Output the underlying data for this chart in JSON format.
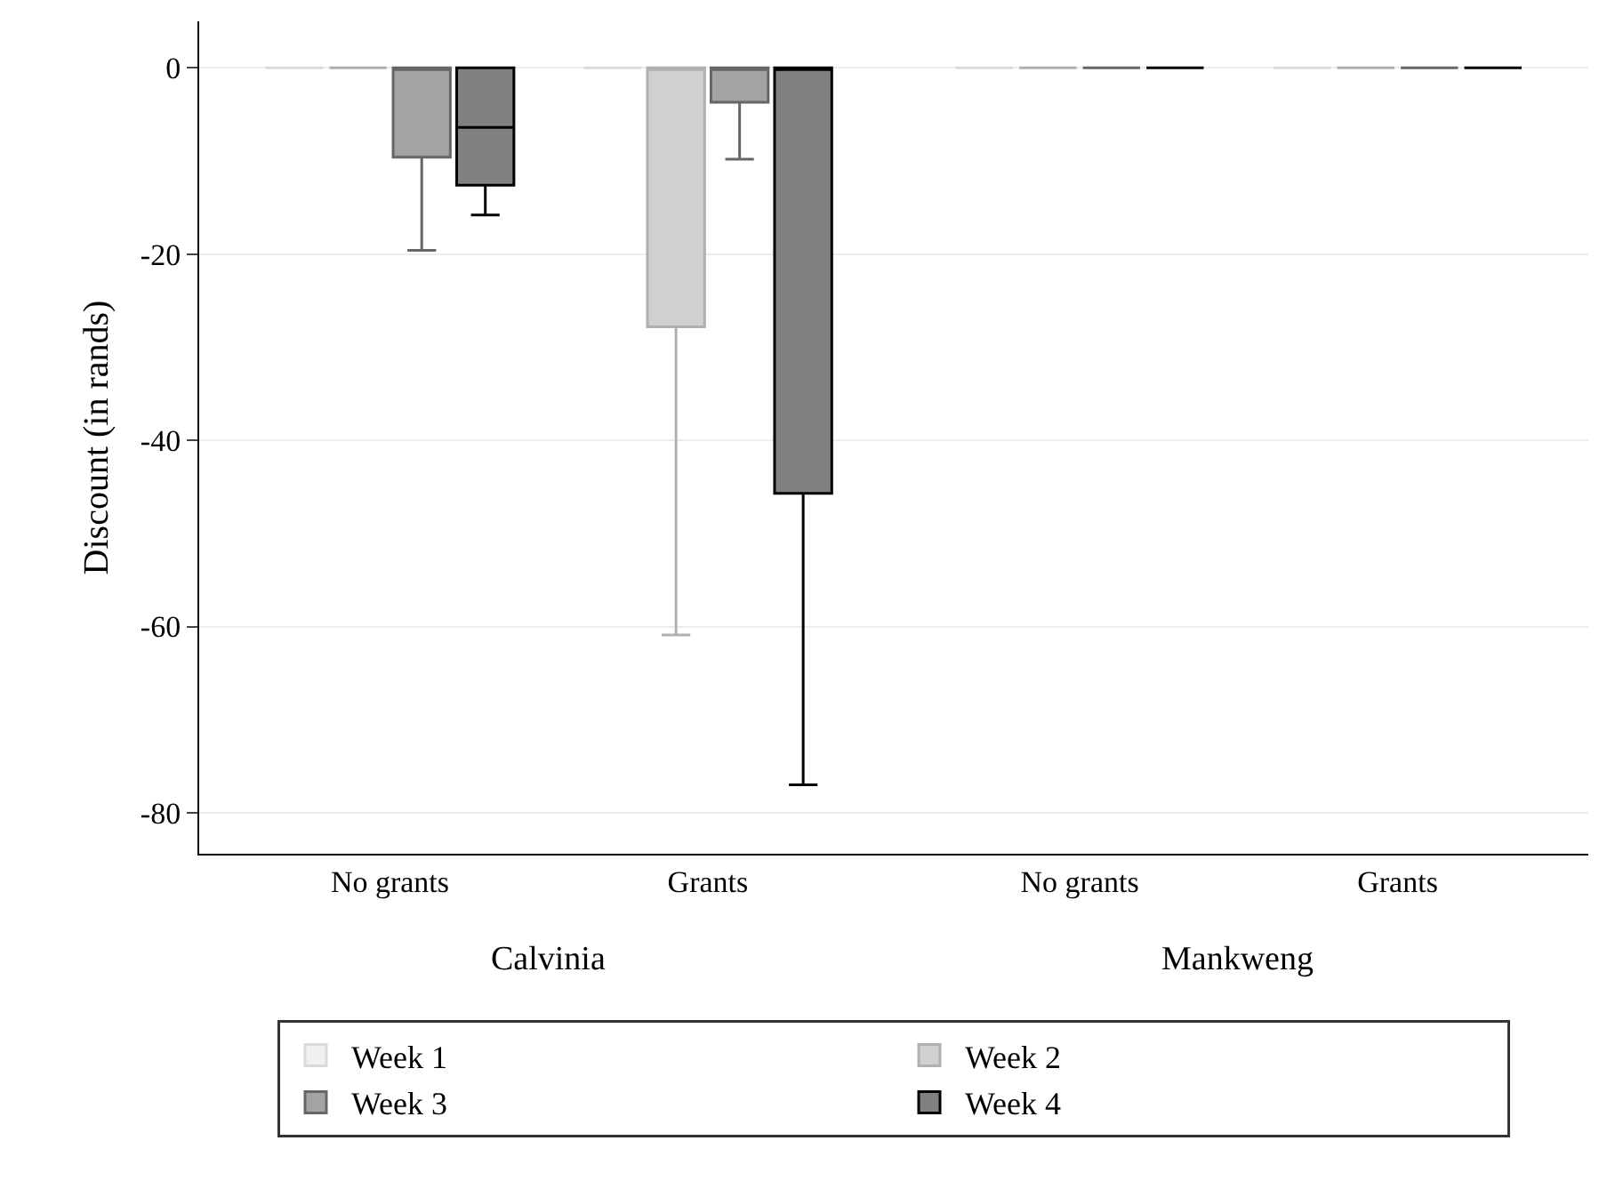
{
  "chart_data": {
    "type": "box",
    "ylabel": "Discount (in rands)",
    "categories": [
      "No grants",
      "Grants",
      "No grants",
      "Grants"
    ],
    "annotations": [
      "Calvinia",
      "Mankweng"
    ],
    "series": [
      {
        "name": "Week 1",
        "color": "#d9d9d9",
        "boxes": [
          {
            "low": 0,
            "q1": 0,
            "median": 0,
            "q3": 0,
            "high": 0
          },
          {
            "low": 0,
            "q1": 0,
            "median": 0,
            "q3": 0,
            "high": 0
          },
          {
            "low": 0,
            "q1": 0,
            "median": 0,
            "q3": 0,
            "high": 0
          },
          {
            "low": 0,
            "q1": 0,
            "median": 0,
            "q3": 0,
            "high": 0
          }
        ]
      },
      {
        "name": "Week 2",
        "color": "#b0b0b0",
        "boxes": [
          {
            "low": 0,
            "q1": 0,
            "median": 0,
            "q3": 0,
            "high": 0
          },
          {
            "low": -60.9,
            "q1": -27.8,
            "median": 0,
            "q3": 0,
            "high": 0
          },
          {
            "low": 0,
            "q1": 0,
            "median": 0,
            "q3": 0,
            "high": 0
          },
          {
            "low": 0,
            "q1": 0,
            "median": 0,
            "q3": 0,
            "high": 0
          }
        ]
      },
      {
        "name": "Week 3",
        "color": "#666666",
        "boxes": [
          {
            "low": -19.6,
            "q1": -9.6,
            "median": 0,
            "q3": 0,
            "high": 0
          },
          {
            "low": -9.8,
            "q1": -3.7,
            "median": 0,
            "q3": 0,
            "high": 0
          },
          {
            "low": 0,
            "q1": 0,
            "median": 0,
            "q3": 0,
            "high": 0
          },
          {
            "low": 0,
            "q1": 0,
            "median": 0,
            "q3": 0,
            "high": 0
          }
        ]
      },
      {
        "name": "Week 4",
        "color": "#000000",
        "boxes": [
          {
            "low": -15.8,
            "q1": -12.6,
            "median": -6.4,
            "q3": 0,
            "high": 0
          },
          {
            "low": -77,
            "q1": -45.7,
            "median": 0,
            "q3": 0,
            "high": 0
          },
          {
            "low": 0,
            "q1": 0,
            "median": 0,
            "q3": 0,
            "high": 0
          },
          {
            "low": 0,
            "q1": 0,
            "median": 0,
            "q3": 0,
            "high": 0
          }
        ]
      }
    ],
    "ylim": [
      -84.4,
      5
    ],
    "yticks": [
      0,
      -20,
      -40,
      -60,
      -80
    ],
    "grid": "y",
    "legend": "bottom"
  }
}
